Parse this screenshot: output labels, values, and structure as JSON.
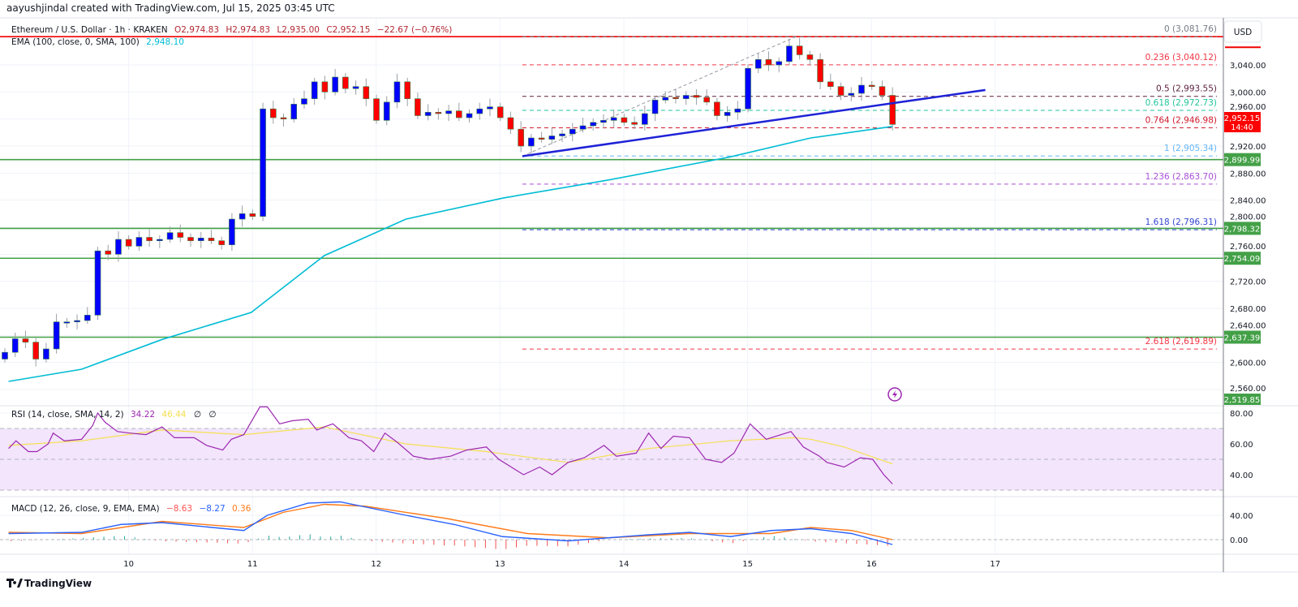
{
  "credit": "aayushjindal created with TradingView.com, Jul 15, 2025 03:45 UTC",
  "legend": {
    "symbol": "Ethereum / U.S. Dollar · 1h · KRAKEN",
    "open": "O2,974.83",
    "high": "H2,974.83",
    "low": "L2,935.00",
    "close": "C2,952.15",
    "change": "−22.67 (−0.76%)",
    "ema_label": "EMA (100, close, 0, SMA, 100)",
    "ema_value": "2,948.10"
  },
  "rsi_legend": {
    "label": "RSI (14, close, SMA, 14, 2)",
    "rsi": "34.22",
    "sma": "46.44",
    "extra1": "∅",
    "extra2": "∅"
  },
  "macd_legend": {
    "label": "MACD (12, 26, close, 9, EMA, EMA)",
    "hist": "−8.63",
    "macd": "−8.27",
    "signal": "0.36"
  },
  "currency_button": "USD",
  "last_price": {
    "price": "2,952.15",
    "countdown": "14:40"
  },
  "brand": "TradingView",
  "colors": {
    "up": "#0000ff",
    "down": "#ff0000",
    "ema": "#00bcd4",
    "support": "#43a047",
    "resistance": "#f00000",
    "trendline": "#1e22d6",
    "rsi": "#9c27b0",
    "rsi_sma": "#f5e050",
    "macd": "#2962ff",
    "signal": "#ff7a1a"
  },
  "chart_data": [
    {
      "type": "candlestick",
      "title": "Ethereum / U.S. Dollar · 1h · KRAKEN",
      "x_axis": {
        "unit": "day of July 2025",
        "ticks": [
          "10",
          "11",
          "12",
          "13",
          "14",
          "15",
          "16",
          "17"
        ],
        "range": [
          8.96,
          18.85
        ]
      },
      "y_axis": {
        "ticks": [
          "3,040.00",
          "3,000.00",
          "2,960.00",
          "2,920.00",
          "2,880.00",
          "2,840.00",
          "2,800.00",
          "2,760.00",
          "2,720.00",
          "2,680.00",
          "2,640.00",
          "2,600.00",
          "2,560.00"
        ],
        "range": [
          2512,
          3082
        ]
      },
      "grid": true,
      "candles_first_day": 9.0,
      "candles_last_day": 16.17,
      "closes_approx": [
        2615,
        2635,
        2630,
        2605,
        2620,
        2660,
        2660,
        2662,
        2670,
        2765,
        2760,
        2782,
        2772,
        2785,
        2780,
        2782,
        2792,
        2785,
        2780,
        2784,
        2780,
        2774,
        2812,
        2820,
        2816,
        2975,
        2962,
        2960,
        2982,
        2990,
        3015,
        3000,
        3022,
        3005,
        3008,
        2990,
        2958,
        2985,
        3015,
        2990,
        2965,
        2970,
        2968,
        2972,
        2962,
        2968,
        2975,
        2978,
        2962,
        2945,
        2920,
        2932,
        2930,
        2935,
        2938,
        2945,
        2950,
        2955,
        2958,
        2962,
        2955,
        2952,
        2968,
        2988,
        2992,
        2990,
        2995,
        2992,
        2985,
        2965,
        2970,
        2975,
        3035,
        3048,
        3040,
        3045,
        3068,
        3055,
        3048,
        3015,
        3008,
        2995,
        2998,
        3010,
        3008,
        2995,
        2952
      ],
      "ema100": [
        [
          9.03,
          2572
        ],
        [
          9.62,
          2590
        ],
        [
          10.27,
          2634
        ],
        [
          10.99,
          2674
        ],
        [
          11.58,
          2758
        ],
        [
          12.24,
          2812
        ],
        [
          13.02,
          2843
        ],
        [
          13.88,
          2870
        ],
        [
          14.86,
          2904
        ],
        [
          15.51,
          2932
        ],
        [
          16.17,
          2949
        ]
      ],
      "horizontal_levels": [
        {
          "price": 3081.76,
          "role": "resistance"
        },
        {
          "price": 2899.99,
          "label": "2,899.99",
          "role": "support"
        },
        {
          "price": 2798.32,
          "label": "2,798.32",
          "role": "support"
        },
        {
          "price": 2754.09,
          "label": "2,754.09",
          "role": "support"
        },
        {
          "price": 2637.39,
          "label": "2,637.39",
          "role": "support"
        }
      ],
      "extra_price_badge": "2,519.85",
      "trendline": [
        [
          13.18,
          2905
        ],
        [
          16.92,
          3003
        ]
      ],
      "fib_anchor_line": [
        [
          13.18,
          2905
        ],
        [
          15.39,
          3081.76
        ]
      ],
      "fibonacci": [
        {
          "ratio": "0",
          "price": "(3,081.76)",
          "value": 3081.76,
          "color": "#787b86"
        },
        {
          "ratio": "0.236",
          "price": "(3,040.12)",
          "value": 3040.12,
          "color": "#f23645"
        },
        {
          "ratio": "0.5",
          "price": "(2,993.55)",
          "value": 2993.55,
          "color": "#5d1f3c"
        },
        {
          "ratio": "0.618",
          "price": "(2,972.73)",
          "value": 2972.73,
          "color": "#22c59a"
        },
        {
          "ratio": "0.764",
          "price": "(2,946.98)",
          "value": 2946.98,
          "color": "#d01c2c"
        },
        {
          "ratio": "1",
          "price": "(2,905.34)",
          "value": 2905.34,
          "color": "#64b5f6"
        },
        {
          "ratio": "1.236",
          "price": "(2,863.70)",
          "value": 2863.7,
          "color": "#a94fd6"
        },
        {
          "ratio": "1.618",
          "price": "(2,796.31)",
          "value": 2796.31,
          "color": "#3346d3"
        },
        {
          "ratio": "2.618",
          "price": "(2,619.89)",
          "value": 2619.89,
          "color": "#f23645"
        }
      ]
    },
    {
      "type": "line",
      "title": "RSI (14, close, SMA, 14, 2)",
      "y_axis": {
        "ticks": [
          "80.00",
          "60.00",
          "40.00"
        ],
        "range": [
          28,
          86
        ]
      },
      "band": [
        30,
        70
      ],
      "rsi": [
        [
          9.03,
          57
        ],
        [
          9.09,
          62
        ],
        [
          9.19,
          55
        ],
        [
          9.26,
          55
        ],
        [
          9.35,
          60
        ],
        [
          9.39,
          67
        ],
        [
          9.48,
          62
        ],
        [
          9.62,
          63
        ],
        [
          9.71,
          72
        ],
        [
          9.75,
          80
        ],
        [
          9.81,
          74
        ],
        [
          9.91,
          68
        ],
        [
          10.01,
          67
        ],
        [
          10.14,
          66
        ],
        [
          10.27,
          71
        ],
        [
          10.37,
          64
        ],
        [
          10.53,
          64
        ],
        [
          10.63,
          59
        ],
        [
          10.76,
          56
        ],
        [
          10.83,
          63
        ],
        [
          10.93,
          66
        ],
        [
          11.06,
          84
        ],
        [
          11.12,
          84
        ],
        [
          11.22,
          73
        ],
        [
          11.32,
          75
        ],
        [
          11.45,
          76
        ],
        [
          11.52,
          69
        ],
        [
          11.58,
          71
        ],
        [
          11.65,
          73
        ],
        [
          11.78,
          64
        ],
        [
          11.88,
          62
        ],
        [
          11.98,
          55
        ],
        [
          12.07,
          67
        ],
        [
          12.17,
          61
        ],
        [
          12.3,
          52
        ],
        [
          12.43,
          50
        ],
        [
          12.6,
          52
        ],
        [
          12.73,
          56
        ],
        [
          12.89,
          58
        ],
        [
          12.99,
          50
        ],
        [
          13.09,
          45
        ],
        [
          13.19,
          40
        ],
        [
          13.32,
          45
        ],
        [
          13.42,
          40
        ],
        [
          13.55,
          48
        ],
        [
          13.68,
          51
        ],
        [
          13.84,
          59
        ],
        [
          13.94,
          52
        ],
        [
          14.1,
          54
        ],
        [
          14.2,
          67
        ],
        [
          14.3,
          57
        ],
        [
          14.4,
          65
        ],
        [
          14.53,
          64
        ],
        [
          14.66,
          50
        ],
        [
          14.79,
          48
        ],
        [
          14.89,
          54
        ],
        [
          15.02,
          73
        ],
        [
          15.15,
          63
        ],
        [
          15.35,
          68
        ],
        [
          15.45,
          58
        ],
        [
          15.58,
          52
        ],
        [
          15.64,
          48
        ],
        [
          15.78,
          45
        ],
        [
          15.91,
          51
        ],
        [
          16.01,
          50
        ],
        [
          16.1,
          40
        ],
        [
          16.17,
          34
        ]
      ],
      "sma": [
        [
          9.03,
          59
        ],
        [
          9.62,
          62
        ],
        [
          10.27,
          69
        ],
        [
          10.93,
          66
        ],
        [
          11.58,
          71
        ],
        [
          12.24,
          60
        ],
        [
          12.89,
          55
        ],
        [
          13.55,
          48
        ],
        [
          14.2,
          57
        ],
        [
          14.86,
          62
        ],
        [
          15.38,
          64
        ],
        [
          15.51,
          63
        ],
        [
          15.78,
          58
        ],
        [
          16.17,
          47
        ]
      ]
    },
    {
      "type": "line",
      "title": "MACD (12, 26, close, 9, EMA, EMA)",
      "y_axis": {
        "ticks": [
          "40.00",
          "0.00"
        ],
        "range": [
          -12,
          70
        ]
      },
      "macd": [
        [
          9.03,
          10
        ],
        [
          9.62,
          12
        ],
        [
          9.94,
          25
        ],
        [
          10.27,
          28
        ],
        [
          10.93,
          15
        ],
        [
          11.12,
          40
        ],
        [
          11.45,
          60
        ],
        [
          11.71,
          62
        ],
        [
          12.24,
          40
        ],
        [
          12.63,
          25
        ],
        [
          13.02,
          5
        ],
        [
          13.55,
          -2
        ],
        [
          14.2,
          8
        ],
        [
          14.53,
          12
        ],
        [
          14.86,
          5
        ],
        [
          15.19,
          15
        ],
        [
          15.51,
          18
        ],
        [
          15.84,
          10
        ],
        [
          16.17,
          -8
        ]
      ],
      "signal": [
        [
          9.03,
          12
        ],
        [
          9.62,
          10
        ],
        [
          10.27,
          30
        ],
        [
          10.93,
          20
        ],
        [
          11.25,
          45
        ],
        [
          11.58,
          58
        ],
        [
          11.91,
          55
        ],
        [
          12.56,
          35
        ],
        [
          13.22,
          10
        ],
        [
          13.88,
          3
        ],
        [
          14.53,
          10
        ],
        [
          15.19,
          10
        ],
        [
          15.51,
          20
        ],
        [
          15.84,
          15
        ],
        [
          16.17,
          0
        ]
      ]
    }
  ]
}
